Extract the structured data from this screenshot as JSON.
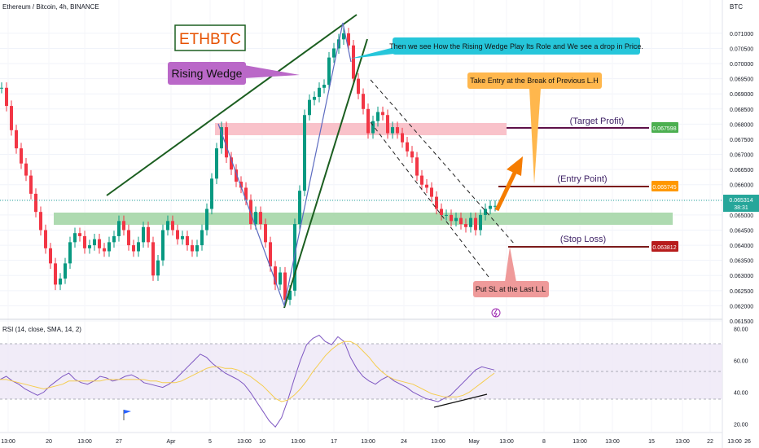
{
  "header": {
    "symbol_line": "Ethereum / Bitcoin, 4h, BINANCE",
    "currency": "BTC"
  },
  "annotations": {
    "ticker_box": "ETHBTC",
    "pattern_label": "Rising Wedge",
    "drop_note": "Then we see How the Rising Wedge Play Its Role and We see a drop in Price.",
    "entry_note": "Take Entry at the Break of Previous L.H",
    "sl_note": "Put SL at the Last L.L",
    "target_label": "(Target Profit)",
    "entry_label": "(Entry Point)",
    "stop_label": "(Stop Loss)"
  },
  "price_tags": {
    "target": "0.067598",
    "entry": "0.065745",
    "current": "0.065314",
    "countdown": "38:31",
    "stop": "0.063812"
  },
  "rsi": {
    "title": "RSI (14, close, SMA, 14, 2)",
    "ticks": [
      "80.00",
      "60.00",
      "40.00",
      "20.00"
    ]
  },
  "colors": {
    "up": "#089981",
    "down": "#f23645",
    "rsi_line": "#7e57c2",
    "rsi_ma": "#f5cd4f",
    "target_tag": "#4caf50",
    "entry_tag": "#ff9800",
    "stop_tag": "#b71c1c",
    "current_tag": "#26a69a",
    "wedge_label_bg": "#ba68c8",
    "drop_note_bg": "#26c6da",
    "entry_note_bg": "#ffb74d",
    "sl_note_bg": "#ef9a9a"
  },
  "chart_data": {
    "type": "line",
    "title": "Ethereum / Bitcoin, 4h, BINANCE",
    "y_ticks": [
      "0.071000",
      "0.070500",
      "0.070000",
      "0.069500",
      "0.069000",
      "0.068500",
      "0.068000",
      "0.067500",
      "0.067000",
      "0.066500",
      "0.066000",
      "0.065500",
      "0.065000",
      "0.064500",
      "0.064000",
      "0.063500",
      "0.063000",
      "0.062500",
      "0.062000",
      "0.061500"
    ],
    "x_ticks": [
      "13:00",
      "20",
      "13:00",
      "27",
      "Apr",
      "5",
      "13:00",
      "10",
      "13:00",
      "17",
      "13:00",
      "24",
      "13:00",
      "May",
      "13:00",
      "8",
      "13:00",
      "13:00",
      "15",
      "13:00",
      "22",
      "13:00",
      "26"
    ],
    "ylim": [
      0.0615,
      0.0714
    ],
    "series": [
      {
        "x": [
          0,
          6,
          12,
          18,
          24,
          30,
          36,
          42,
          48,
          54,
          60,
          66,
          72,
          78,
          84,
          90,
          96,
          102,
          108,
          114,
          120,
          126,
          132,
          138,
          144,
          150,
          156,
          162,
          168,
          174,
          180,
          186,
          192,
          198,
          204,
          210,
          216,
          222,
          228,
          234,
          240,
          246,
          252,
          258,
          264,
          270,
          276,
          282,
          288,
          294,
          300,
          306,
          312,
          318,
          324,
          330,
          336,
          342,
          348,
          354,
          360,
          366,
          372,
          378,
          384,
          390,
          396,
          402,
          408,
          414,
          420,
          426,
          432,
          438,
          444,
          450,
          456,
          462,
          468,
          474,
          480,
          486,
          492,
          498,
          504,
          510,
          516,
          522,
          528,
          534,
          540,
          546,
          552,
          558,
          564,
          570,
          576,
          582,
          588,
          594,
          600,
          606
        ],
        "values": [
          0.0692,
          0.0686,
          0.0678,
          0.0672,
          0.0667,
          0.0663,
          0.0657,
          0.0651,
          0.0645,
          0.0639,
          0.0634,
          0.0627,
          0.0629,
          0.0634,
          0.0641,
          0.0644,
          0.0643,
          0.0639,
          0.064,
          0.0642,
          0.0639,
          0.0638,
          0.0641,
          0.0643,
          0.0648,
          0.0645,
          0.064,
          0.0638,
          0.0641,
          0.0646,
          0.0641,
          0.063,
          0.0635,
          0.0645,
          0.0648,
          0.0645,
          0.0642,
          0.0643,
          0.064,
          0.0638,
          0.064,
          0.0645,
          0.0652,
          0.0662,
          0.0672,
          0.0679,
          0.0669,
          0.0665,
          0.0661,
          0.0659,
          0.0655,
          0.0647,
          0.0651,
          0.0647,
          0.0641,
          0.0633,
          0.0627,
          0.0631,
          0.0622,
          0.0625,
          0.0647,
          0.0658,
          0.0683,
          0.0688,
          0.0689,
          0.0692,
          0.0693,
          0.0702,
          0.0705,
          0.0708,
          0.071,
          0.0706,
          0.0695,
          0.069,
          0.0685,
          0.0677,
          0.0681,
          0.0684,
          0.0683,
          0.0677,
          0.0679,
          0.0677,
          0.0674,
          0.0671,
          0.0669,
          0.0663,
          0.066,
          0.0659,
          0.0656,
          0.0652,
          0.065,
          0.065,
          0.0648,
          0.0649,
          0.0647,
          0.0646,
          0.0649,
          0.0645,
          0.065,
          0.0652,
          0.0653,
          0.0653
        ]
      }
    ],
    "zones": [
      {
        "name": "resistance",
        "from": 0.0673,
        "to": 0.0678,
        "color": "#f8bbc4"
      },
      {
        "name": "support",
        "from": 0.0646,
        "to": 0.0649,
        "color": "#a5d6a7"
      }
    ],
    "levels": [
      {
        "name": "target",
        "value": 0.067598
      },
      {
        "name": "entry",
        "value": 0.065745
      },
      {
        "name": "stop",
        "value": 0.063812
      }
    ],
    "rsi_series": [
      48,
      50,
      47,
      45,
      42,
      40,
      38,
      40,
      44,
      47,
      50,
      52,
      48,
      46,
      45,
      47,
      50,
      49,
      47,
      48,
      50,
      51,
      49,
      46,
      45,
      44,
      43,
      45,
      48,
      52,
      56,
      60,
      64,
      62,
      58,
      55,
      52,
      50,
      48,
      45,
      40,
      34,
      28,
      22,
      18,
      24,
      35,
      48,
      60,
      70,
      74,
      76,
      72,
      70,
      75,
      72,
      62,
      55,
      50,
      47,
      45,
      48,
      50,
      47,
      45,
      43,
      40,
      38,
      36,
      35,
      34,
      36,
      38,
      42,
      46,
      50,
      54,
      56,
      55,
      54
    ],
    "rsi_ma": [
      48,
      48,
      47,
      46,
      45,
      44,
      43,
      42,
      43,
      44,
      45,
      47,
      47,
      47,
      47,
      47,
      47,
      48,
      48,
      48,
      48,
      48,
      48,
      48,
      47,
      47,
      46,
      46,
      46,
      47,
      49,
      51,
      53,
      55,
      56,
      56,
      55,
      55,
      54,
      52,
      50,
      47,
      44,
      40,
      36,
      34,
      35,
      38,
      42,
      47,
      53,
      58,
      63,
      67,
      70,
      72,
      72,
      70,
      66,
      62,
      57,
      53,
      50,
      48,
      47,
      46,
      45,
      43,
      41,
      39,
      38,
      37,
      37,
      37,
      38,
      40,
      43,
      46,
      49,
      52
    ],
    "rsi_ylim": [
      15,
      85
    ]
  }
}
